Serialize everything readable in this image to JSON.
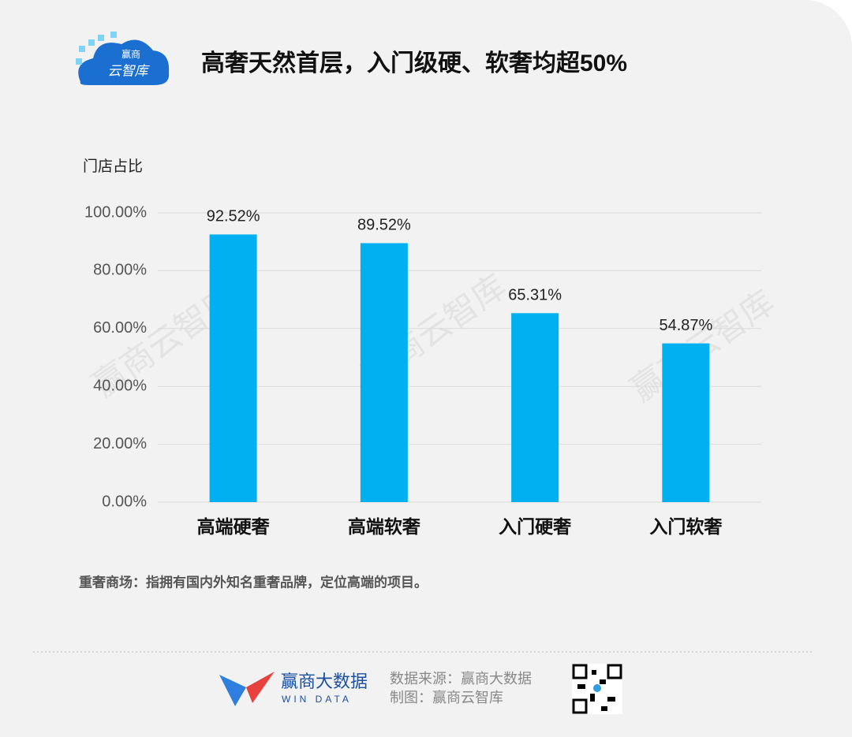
{
  "chart_data": {
    "type": "bar",
    "title": "高奢天然首层，入门级硬、软奢均超50%",
    "y_label": "门店占比",
    "categories": [
      "高端硬奢",
      "高端软奢",
      "入门硬奢",
      "入门软奢"
    ],
    "values": [
      92.52,
      89.52,
      65.31,
      54.87
    ],
    "value_labels": [
      "92.52%",
      "89.52%",
      "65.31%",
      "54.87%"
    ],
    "color": "#00b0f0",
    "ylim": [
      0,
      100
    ],
    "yticks": [
      {
        "value": 0,
        "label": "0.00%"
      },
      {
        "value": 20,
        "label": "20.00%"
      },
      {
        "value": 40,
        "label": "40.00%"
      },
      {
        "value": 60,
        "label": "60.00%"
      },
      {
        "value": 80,
        "label": "80.00%"
      },
      {
        "value": 100,
        "label": "100.00%"
      }
    ],
    "grid": true,
    "note": "重奢商场：指拥有国内外知名重奢品牌，定位高端的项目。"
  },
  "branding": {
    "logo_top": "赢商",
    "logo_bottom": "云智库",
    "watermark": "赢商云智库",
    "footer_brand": "赢商大数据",
    "footer_brand_en": "WIN DATA",
    "source": "数据来源：赢商大数据",
    "maker": "制图：赢商云智库"
  }
}
